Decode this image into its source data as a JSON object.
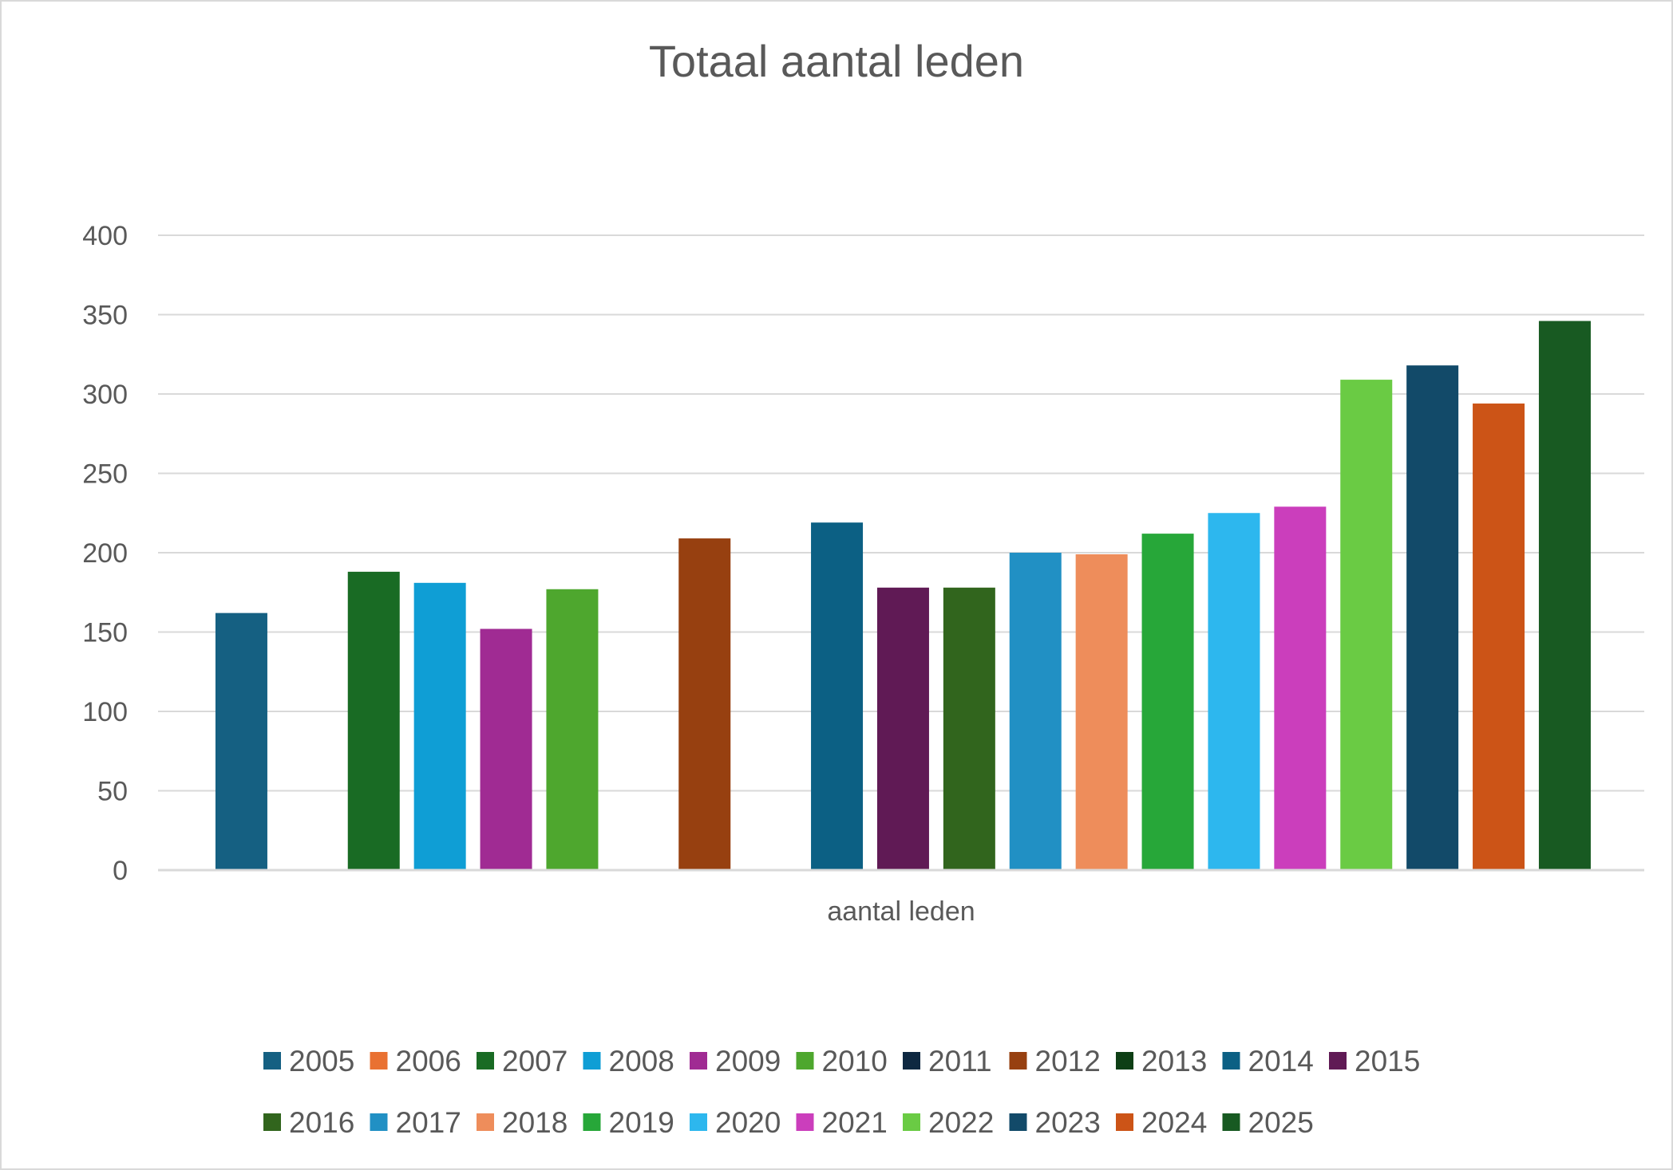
{
  "chart_data": {
    "type": "bar",
    "title": "Totaal aantal leden",
    "categories": [
      "aantal leden"
    ],
    "xlabel": "",
    "ylabel": "",
    "ylim": [
      0,
      400
    ],
    "yticks": [
      0,
      50,
      100,
      150,
      200,
      250,
      300,
      350,
      400
    ],
    "grid": true,
    "legend_position": "bottom",
    "series": [
      {
        "name": "2005",
        "values": [
          162
        ],
        "color": "#156082"
      },
      {
        "name": "2006",
        "values": [
          0
        ],
        "color": "#E97132"
      },
      {
        "name": "2007",
        "values": [
          188
        ],
        "color": "#196B24"
      },
      {
        "name": "2008",
        "values": [
          181
        ],
        "color": "#0F9ED5"
      },
      {
        "name": "2009",
        "values": [
          152
        ],
        "color": "#A02B93"
      },
      {
        "name": "2010",
        "values": [
          177
        ],
        "color": "#4EA72E"
      },
      {
        "name": "2011",
        "values": [
          0
        ],
        "color": "#0E2841"
      },
      {
        "name": "2012",
        "values": [
          209
        ],
        "color": "#974010"
      },
      {
        "name": "2013",
        "values": [
          0
        ],
        "color": "#0E3F15"
      },
      {
        "name": "2014",
        "values": [
          219
        ],
        "color": "#0C6084"
      },
      {
        "name": "2015",
        "values": [
          178
        ],
        "color": "#601A55"
      },
      {
        "name": "2016",
        "values": [
          178
        ],
        "color": "#31651D"
      },
      {
        "name": "2017",
        "values": [
          200
        ],
        "color": "#2190C4"
      },
      {
        "name": "2018",
        "values": [
          199
        ],
        "color": "#EE8D5B"
      },
      {
        "name": "2019",
        "values": [
          212
        ],
        "color": "#27A739"
      },
      {
        "name": "2020",
        "values": [
          225
        ],
        "color": "#2DB7EE"
      },
      {
        "name": "2021",
        "values": [
          229
        ],
        "color": "#CB3EBC"
      },
      {
        "name": "2022",
        "values": [
          309
        ],
        "color": "#6ACB44"
      },
      {
        "name": "2023",
        "values": [
          318
        ],
        "color": "#124A69"
      },
      {
        "name": "2024",
        "values": [
          294
        ],
        "color": "#CC5417"
      },
      {
        "name": "2025",
        "values": [
          346
        ],
        "color": "#185A22"
      }
    ]
  }
}
